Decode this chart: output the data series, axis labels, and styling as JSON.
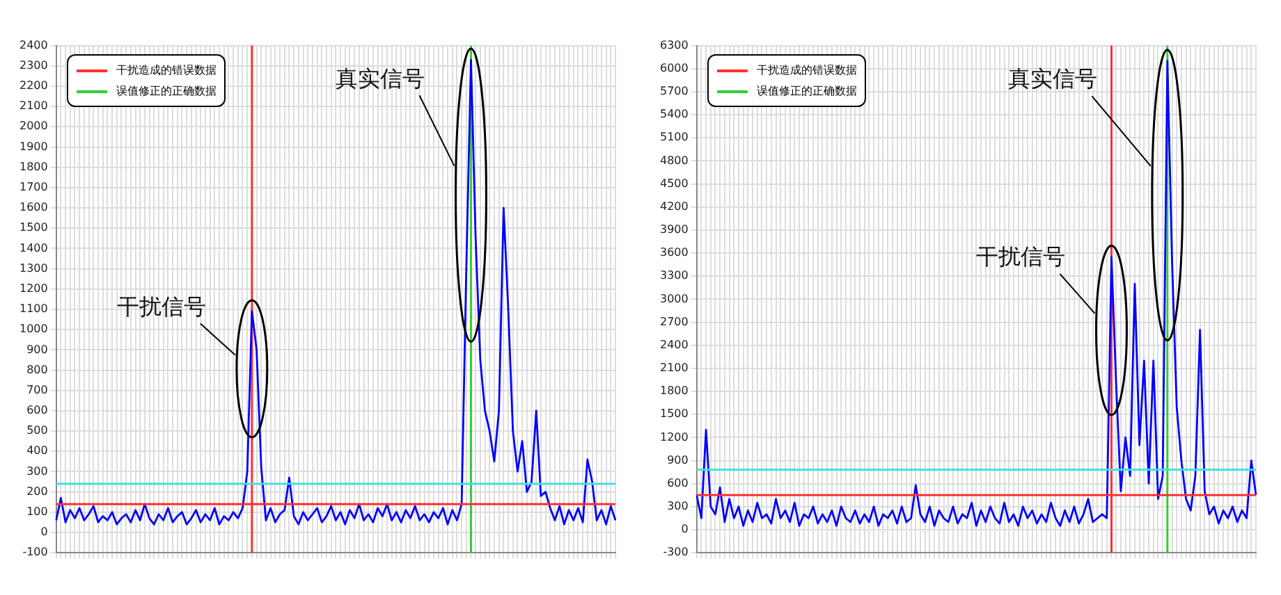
{
  "chart_data": [
    {
      "type": "line",
      "categories": [
        null,
        null,
        null,
        null,
        null,
        null,
        null,
        null,
        null,
        null,
        null,
        null,
        null,
        null,
        null,
        null,
        null,
        null,
        null,
        null,
        null,
        null,
        null,
        null,
        null,
        null,
        null,
        null,
        null,
        null,
        null,
        null,
        null,
        null,
        null,
        null,
        null,
        null,
        null,
        null,
        null,
        null,
        null,
        null,
        null,
        null,
        null,
        null,
        null,
        null,
        null,
        null,
        null,
        null,
        null,
        null,
        null,
        null,
        null,
        null,
        null,
        null,
        null,
        null,
        null,
        null,
        null,
        null,
        null,
        null,
        null,
        null,
        null,
        null,
        null,
        null,
        null,
        null,
        null,
        null,
        null,
        null,
        null,
        null,
        null,
        null,
        null,
        null,
        null,
        null,
        null,
        null,
        null,
        null,
        null,
        null,
        null,
        null,
        null,
        null,
        null,
        null,
        null,
        null,
        null,
        null,
        null,
        null,
        null,
        null,
        null,
        null,
        null,
        null,
        null,
        null,
        null,
        null,
        null,
        null,
        null
      ],
      "series": [
        {
          "color": "#0000ff",
          "values": [
            60,
            170,
            50,
            110,
            70,
            120,
            60,
            90,
            130,
            50,
            80,
            60,
            100,
            40,
            70,
            90,
            50,
            110,
            60,
            140,
            70,
            40,
            90,
            60,
            120,
            50,
            80,
            100,
            40,
            70,
            110,
            50,
            90,
            60,
            120,
            40,
            80,
            60,
            100,
            70,
            120,
            300,
            1090,
            900,
            320,
            60,
            120,
            50,
            90,
            110,
            270,
            80,
            40,
            100,
            60,
            90,
            120,
            50,
            80,
            130,
            60,
            100,
            40,
            110,
            70,
            140,
            60,
            90,
            50,
            120,
            80,
            140,
            60,
            100,
            50,
            110,
            70,
            130,
            60,
            90,
            50,
            100,
            70,
            120,
            40,
            110,
            60,
            140,
            1300,
            2330,
            1450,
            850,
            600,
            500,
            350,
            600,
            1600,
            1100,
            500,
            300,
            450,
            200,
            250,
            600,
            180,
            200,
            120,
            60,
            130,
            40,
            110,
            60,
            120,
            50,
            360,
            250,
            60,
            110,
            40,
            130,
            60
          ]
        }
      ],
      "ylim": [
        -100,
        2400
      ],
      "yticks": [
        -100,
        0,
        100,
        200,
        300,
        400,
        500,
        600,
        700,
        800,
        900,
        1000,
        1100,
        1200,
        1300,
        1400,
        1500,
        1600,
        1700,
        1800,
        1900,
        2000,
        2100,
        2200,
        2300,
        2400
      ],
      "grid": true,
      "marker": "none",
      "line_style": "solid",
      "ref_lines": [
        {
          "axis": "y",
          "value": 140,
          "color": "#ff3030"
        },
        {
          "axis": "y",
          "value": 240,
          "color": "#40e0e0"
        }
      ],
      "annotations": [
        "干扰信号",
        "真实信号",
        "干扰造成的错误数据",
        "误值修正的正确数据"
      ]
    },
    {
      "type": "line",
      "categories": [
        null,
        null,
        null,
        null,
        null,
        null,
        null,
        null,
        null,
        null,
        null,
        null,
        null,
        null,
        null,
        null,
        null,
        null,
        null,
        null,
        null,
        null,
        null,
        null,
        null,
        null,
        null,
        null,
        null,
        null,
        null,
        null,
        null,
        null,
        null,
        null,
        null,
        null,
        null,
        null,
        null,
        null,
        null,
        null,
        null,
        null,
        null,
        null,
        null,
        null,
        null,
        null,
        null,
        null,
        null,
        null,
        null,
        null,
        null,
        null,
        null,
        null,
        null,
        null,
        null,
        null,
        null,
        null,
        null,
        null,
        null,
        null,
        null,
        null,
        null,
        null,
        null,
        null,
        null,
        null,
        null,
        null,
        null,
        null,
        null,
        null,
        null,
        null,
        null,
        null,
        null,
        null,
        null,
        null,
        null,
        null,
        null,
        null,
        null,
        null,
        null,
        null,
        null,
        null,
        null,
        null,
        null,
        null,
        null,
        null,
        null,
        null,
        null,
        null,
        null,
        null,
        null,
        null,
        null,
        null,
        null
      ],
      "series": [
        {
          "color": "#0000ff",
          "values": [
            450,
            150,
            1300,
            300,
            200,
            550,
            100,
            400,
            150,
            300,
            50,
            250,
            100,
            350,
            150,
            200,
            80,
            400,
            150,
            250,
            100,
            350,
            50,
            200,
            150,
            300,
            80,
            200,
            100,
            250,
            50,
            300,
            150,
            100,
            250,
            80,
            200,
            100,
            300,
            50,
            200,
            150,
            250,
            80,
            300,
            100,
            150,
            580,
            200,
            100,
            300,
            50,
            250,
            150,
            100,
            300,
            80,
            200,
            150,
            350,
            50,
            250,
            100,
            300,
            150,
            80,
            350,
            100,
            200,
            50,
            300,
            150,
            250,
            80,
            200,
            100,
            350,
            150,
            50,
            250,
            100,
            300,
            80,
            200,
            400,
            100,
            150,
            200,
            150,
            3550,
            1900,
            500,
            1200,
            700,
            3200,
            1100,
            2200,
            600,
            2200,
            400,
            700,
            6100,
            3500,
            1600,
            900,
            400,
            250,
            700,
            2600,
            500,
            200,
            300,
            80,
            250,
            150,
            300,
            100,
            250,
            150,
            900,
            450
          ]
        }
      ],
      "ylim": [
        -300,
        6300
      ],
      "yticks": [
        -300,
        0,
        300,
        600,
        900,
        1200,
        1500,
        1800,
        2100,
        2400,
        2700,
        3000,
        3300,
        3600,
        3900,
        4200,
        4500,
        4800,
        5100,
        5400,
        5700,
        6000,
        6300
      ],
      "grid": true,
      "marker": "none",
      "line_style": "solid",
      "ref_lines": [
        {
          "axis": "y",
          "value": 450,
          "color": "#ff3030"
        },
        {
          "axis": "y",
          "value": 780,
          "color": "#40e0e0"
        }
      ],
      "annotations": [
        "干扰信号",
        "真实信号",
        "干扰造成的错误数据",
        "误值修正的正确数据"
      ]
    }
  ]
}
